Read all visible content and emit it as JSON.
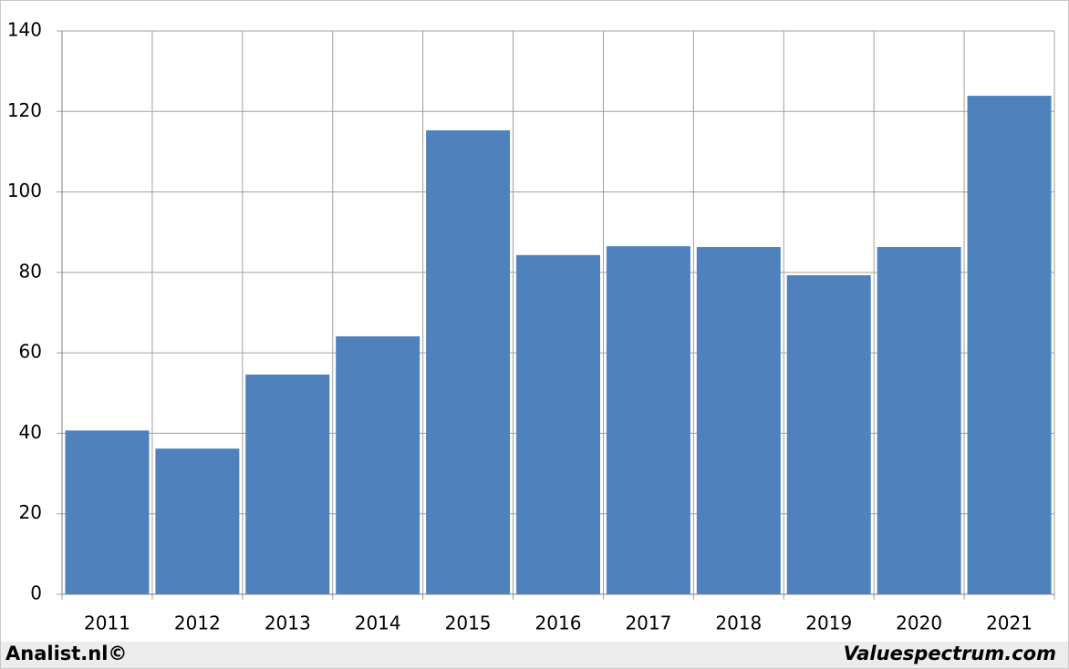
{
  "chart_data": {
    "type": "bar",
    "categories": [
      "2011",
      "2012",
      "2013",
      "2014",
      "2015",
      "2016",
      "2017",
      "2018",
      "2019",
      "2020",
      "2021"
    ],
    "values": [
      40.7,
      36.2,
      54.6,
      64.1,
      115.3,
      84.3,
      86.5,
      86.3,
      79.3,
      86.3,
      123.9
    ],
    "color": "#4f81bd",
    "ylim": [
      0,
      140
    ],
    "yticks": [
      0,
      20,
      40,
      60,
      80,
      100,
      120,
      140
    ],
    "grid": true,
    "footer_left": "Analist.nl©",
    "footer_right": "Valuespectrum.com"
  }
}
